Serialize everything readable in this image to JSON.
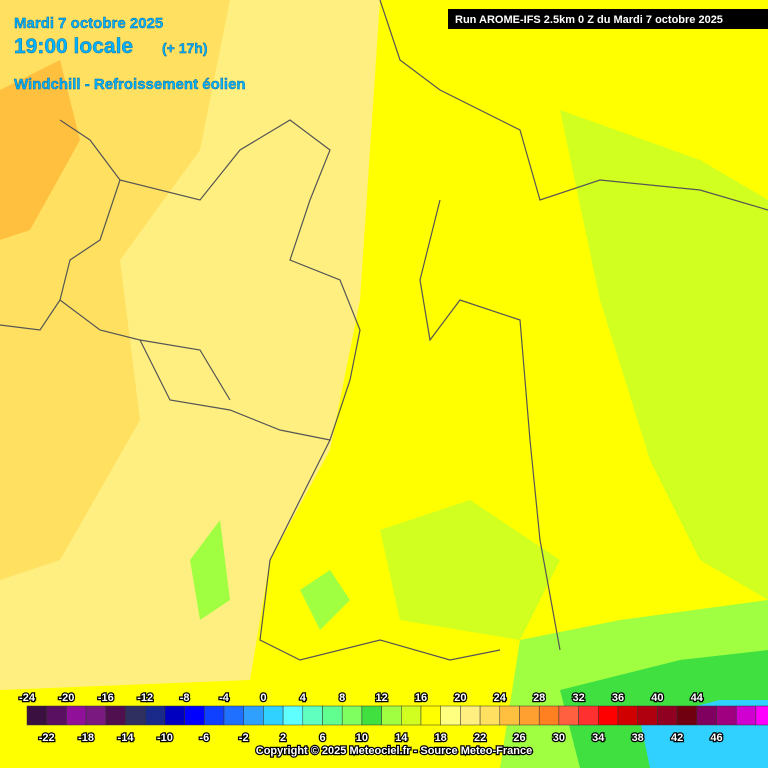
{
  "header": {
    "date": "Mardi 7 octobre 2025",
    "time": "19:00 locale",
    "offset": "(+ 17h)",
    "title": "Windchill - Refroissement éolien",
    "run": "Run AROME-IFS 2.5km 0 Z du Mardi 7 octobre 2025"
  },
  "legend": {
    "ticks": [
      -24,
      -22,
      -20,
      -18,
      -16,
      -14,
      -12,
      -10,
      -8,
      -6,
      -4,
      -2,
      0,
      2,
      4,
      6,
      8,
      10,
      12,
      14,
      16,
      18,
      20,
      22,
      24,
      26,
      28,
      30,
      32,
      34,
      36,
      38,
      40,
      42,
      44,
      46
    ],
    "colors": [
      "#3a1040",
      "#5a1060",
      "#90109a",
      "#7a1a80",
      "#501050",
      "#303060",
      "#1a2a8a",
      "#0000c0",
      "#0000ff",
      "#1040ff",
      "#2070ff",
      "#30a0ff",
      "#30d0ff",
      "#60ffff",
      "#60ffc0",
      "#60ff90",
      "#80ff60",
      "#40e040",
      "#a0ff40",
      "#d0ff20",
      "#ffff00",
      "#ffff80",
      "#ffef80",
      "#ffe060",
      "#ffc040",
      "#ffa030",
      "#ff8020",
      "#ff6040",
      "#ff3030",
      "#ff0000",
      "#d00000",
      "#b00010",
      "#900020",
      "#700010",
      "#800060",
      "#a00080",
      "#d000d0",
      "#ff00ff",
      "#ff80ff"
    ]
  },
  "footer": {
    "copyright": "Copyright © 2025 Meteociel.fr - Source Meteo-France"
  }
}
